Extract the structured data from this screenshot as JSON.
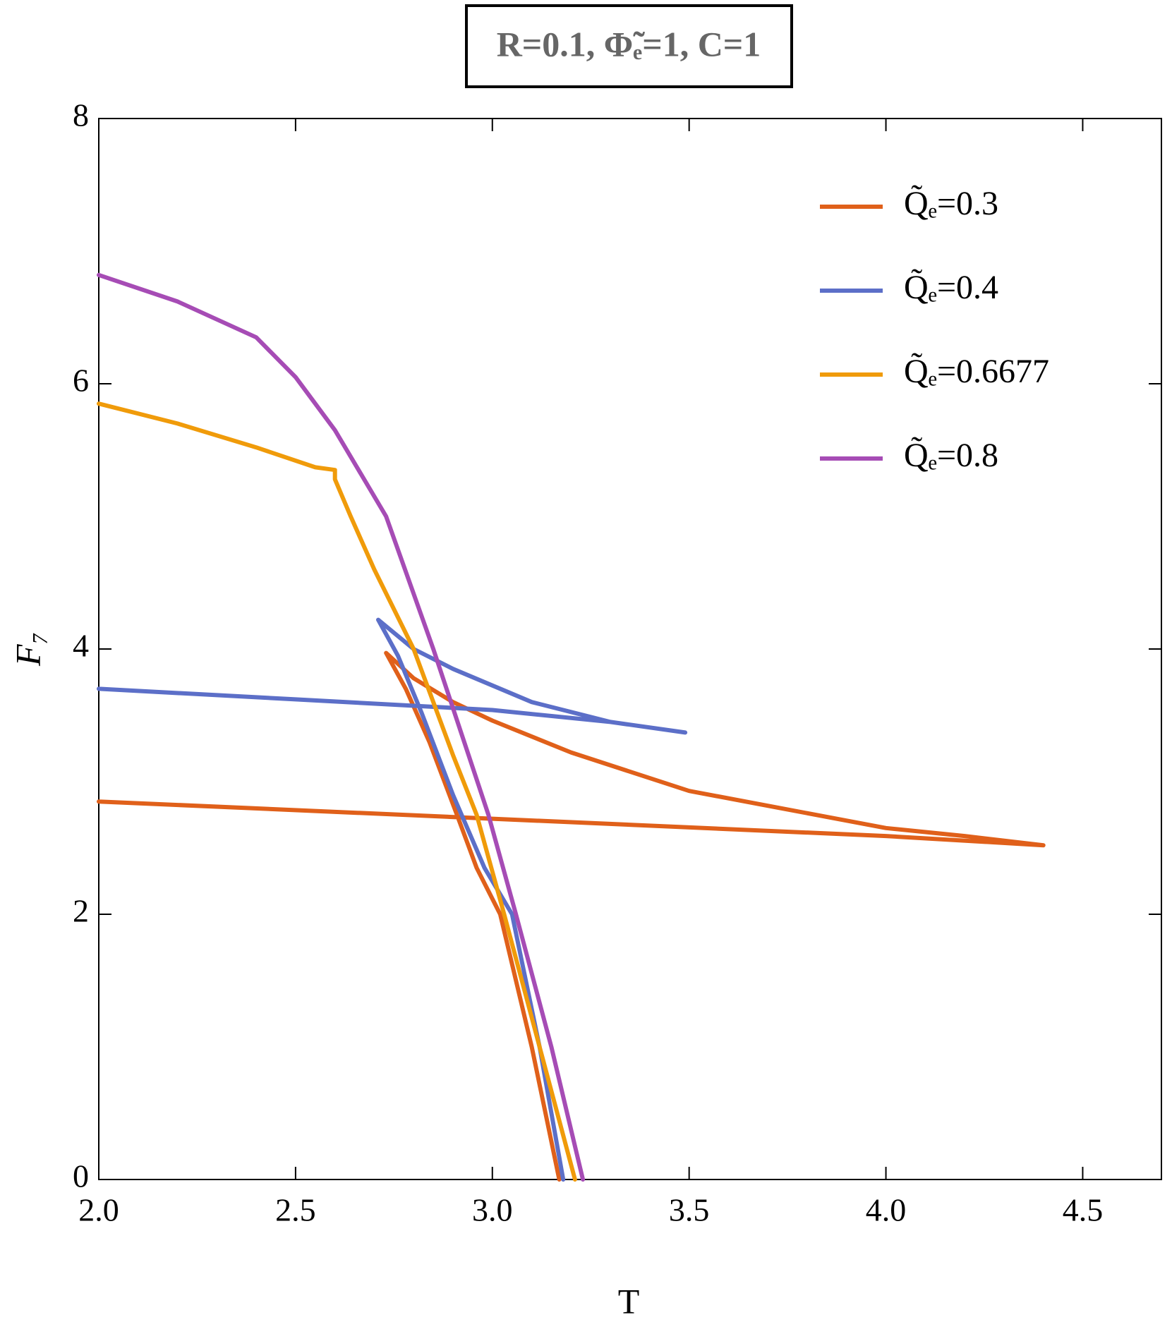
{
  "chart_data": {
    "type": "line",
    "title": "R=0.1, Φ̃ₑ=1, C=1",
    "x_label": "T",
    "y_label": "F₇",
    "xlim": [
      2.0,
      4.7
    ],
    "ylim": [
      0,
      8
    ],
    "xticks": [
      {
        "value": 2,
        "label": "2.0"
      },
      {
        "value": 2.5,
        "label": "2.5"
      },
      {
        "value": 3,
        "label": "3.0"
      },
      {
        "value": 3.5,
        "label": "3.5"
      },
      {
        "value": 4,
        "label": "4.0"
      },
      {
        "value": 4.5,
        "label": "4.5"
      }
    ],
    "yticks": [
      0,
      2,
      4,
      6,
      8
    ],
    "grid": false,
    "legend": "upper right",
    "series": [
      {
        "name": "Q̃ₑ=0.3",
        "color": "#e0601a",
        "x": [
          2.0,
          3.0,
          4.0,
          4.4,
          4.2,
          4.0,
          3.5,
          3.2,
          3.0,
          2.9,
          2.8,
          2.73,
          2.78,
          2.84,
          2.91,
          2.96,
          3.02,
          3.1,
          3.17
        ],
        "values": [
          2.85,
          2.72,
          2.59,
          2.52,
          2.59,
          2.65,
          2.93,
          3.22,
          3.46,
          3.6,
          3.78,
          3.97,
          3.7,
          3.3,
          2.75,
          2.35,
          2.0,
          1.0,
          0
        ]
      },
      {
        "name": "Q̃ₑ=0.4",
        "color": "#5c6fc8",
        "x": [
          2.0,
          2.5,
          3.0,
          3.3,
          3.49,
          3.3,
          3.1,
          2.9,
          2.8,
          2.71,
          2.76,
          2.82,
          2.9,
          2.98,
          3.05,
          3.12,
          3.18
        ],
        "values": [
          3.7,
          3.62,
          3.54,
          3.45,
          3.37,
          3.45,
          3.6,
          3.85,
          4.0,
          4.22,
          3.95,
          3.52,
          2.9,
          2.35,
          2.0,
          1.0,
          0
        ]
      },
      {
        "name": "Q̃ₑ=0.6677",
        "color": "#f09b0a",
        "x": [
          2.0,
          2.2,
          2.4,
          2.55,
          2.6,
          2.6,
          2.64,
          2.7,
          2.8,
          2.9,
          2.96,
          3.03,
          3.12,
          3.21
        ],
        "values": [
          5.85,
          5.7,
          5.52,
          5.37,
          5.35,
          5.28,
          5.0,
          4.6,
          4.0,
          3.2,
          2.75,
          2.0,
          1.0,
          0
        ]
      },
      {
        "name": "Q̃ₑ=0.8",
        "color": "#a64cb5",
        "x": [
          2.0,
          2.2,
          2.4,
          2.5,
          2.6,
          2.73,
          2.85,
          2.99,
          3.06,
          3.15,
          3.23
        ],
        "values": [
          6.82,
          6.62,
          6.35,
          6.05,
          5.65,
          5.0,
          4.0,
          2.75,
          2.0,
          1.0,
          0
        ]
      }
    ]
  }
}
